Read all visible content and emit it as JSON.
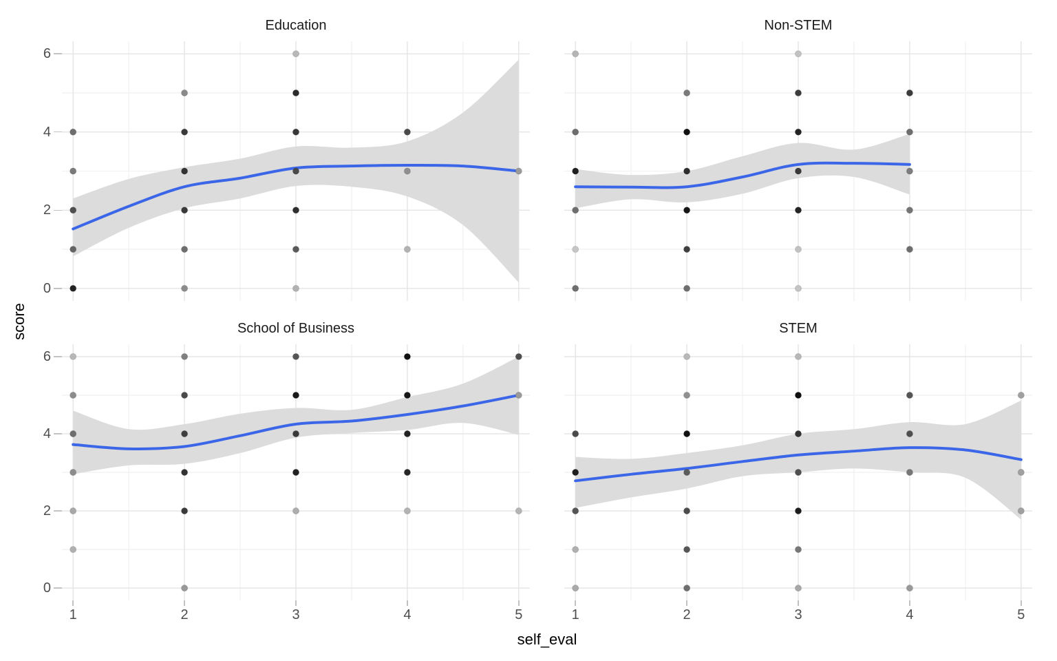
{
  "labels": {
    "x_axis": "self_eval",
    "y_axis": "score"
  },
  "axes": {
    "x_ticks": [
      "1",
      "2",
      "3",
      "4",
      "5"
    ],
    "y_ticks": [
      "0",
      "2",
      "4",
      "6"
    ],
    "x_domain": [
      0.9,
      5.1
    ],
    "y_domain": [
      -0.32,
      6.32
    ],
    "x_major": [
      1,
      2,
      3,
      4,
      5
    ],
    "x_minor": [
      1.5,
      2.5,
      3.5,
      4.5
    ],
    "y_major": [
      0,
      2,
      4,
      6
    ],
    "y_minor": [
      1,
      3,
      5
    ]
  },
  "style": {
    "background": "#FFFFFF",
    "smooth_color": "#3B66E8",
    "ribbon_color": "#DCDCDC",
    "grid_major": "#E4E4E4",
    "grid_minor": "#F1F1F1",
    "tick_color": "#C2C2C2",
    "tick_label_color": "#4D4D4D",
    "strip_color": "#1A1A1A",
    "axis_title_color": "#000000"
  },
  "chart_data": [
    {
      "type": "scatter",
      "facet": "Education",
      "xlabel": "self_eval",
      "ylabel": "score",
      "points": [
        {
          "x": 1,
          "y": 4,
          "c": "#6E6E6E"
        },
        {
          "x": 1,
          "y": 3,
          "c": "#7A7A7A"
        },
        {
          "x": 1,
          "y": 2,
          "c": "#4F4F4F"
        },
        {
          "x": 1,
          "y": 1,
          "c": "#646464"
        },
        {
          "x": 1,
          "y": 0,
          "c": "#222222"
        },
        {
          "x": 2,
          "y": 5,
          "c": "#8A8A8A"
        },
        {
          "x": 2,
          "y": 4,
          "c": "#3A3A3A"
        },
        {
          "x": 2,
          "y": 3,
          "c": "#333333"
        },
        {
          "x": 2,
          "y": 2,
          "c": "#3A3A3A"
        },
        {
          "x": 2,
          "y": 1,
          "c": "#6E6E6E"
        },
        {
          "x": 2,
          "y": 0,
          "c": "#8C8C8C"
        },
        {
          "x": 3,
          "y": 6,
          "c": "#B8B8B8"
        },
        {
          "x": 3,
          "y": 5,
          "c": "#2B2B2B"
        },
        {
          "x": 3,
          "y": 4,
          "c": "#383838"
        },
        {
          "x": 3,
          "y": 3,
          "c": "#4A4A4A"
        },
        {
          "x": 3,
          "y": 2,
          "c": "#2E2E2E"
        },
        {
          "x": 3,
          "y": 1,
          "c": "#5A5A5A"
        },
        {
          "x": 3,
          "y": 0,
          "c": "#B2B2B2"
        },
        {
          "x": 4,
          "y": 4,
          "c": "#4A4A4A"
        },
        {
          "x": 4,
          "y": 3,
          "c": "#8F8F8F"
        },
        {
          "x": 4,
          "y": 1,
          "c": "#B2B2B2"
        },
        {
          "x": 5,
          "y": 3,
          "c": "#9A9A9A"
        }
      ],
      "smooth": {
        "x": [
          1,
          1.5,
          2,
          2.5,
          3,
          3.5,
          4,
          4.5,
          5
        ],
        "y": [
          1.52,
          2.1,
          2.6,
          2.82,
          3.08,
          3.13,
          3.15,
          3.13,
          3.0
        ]
      },
      "ribbon": {
        "x": [
          1,
          1.5,
          2,
          2.5,
          3,
          3.5,
          4,
          4.5,
          5
        ],
        "ymin": [
          0.82,
          1.55,
          2.05,
          2.3,
          2.62,
          2.6,
          2.35,
          1.62,
          0.15
        ],
        "ymax": [
          2.3,
          2.8,
          3.1,
          3.32,
          3.63,
          3.6,
          3.76,
          4.5,
          5.85
        ]
      }
    },
    {
      "type": "scatter",
      "facet": "Non-STEM",
      "xlabel": "self_eval",
      "ylabel": "score",
      "points": [
        {
          "x": 1,
          "y": 6,
          "c": "#B5B5B5"
        },
        {
          "x": 1,
          "y": 4,
          "c": "#6E6E6E"
        },
        {
          "x": 1,
          "y": 3,
          "c": "#1F1F1F"
        },
        {
          "x": 1,
          "y": 2,
          "c": "#6E6E6E"
        },
        {
          "x": 1,
          "y": 1,
          "c": "#C6C6C6"
        },
        {
          "x": 1,
          "y": 0,
          "c": "#6E6E6E"
        },
        {
          "x": 2,
          "y": 5,
          "c": "#7A7A7A"
        },
        {
          "x": 2,
          "y": 4,
          "c": "#111111"
        },
        {
          "x": 2,
          "y": 3,
          "c": "#2E2E2E"
        },
        {
          "x": 2,
          "y": 2,
          "c": "#161616"
        },
        {
          "x": 2,
          "y": 1,
          "c": "#3F3F3F"
        },
        {
          "x": 2,
          "y": 0,
          "c": "#6E6E6E"
        },
        {
          "x": 3,
          "y": 6,
          "c": "#C2C2C2"
        },
        {
          "x": 3,
          "y": 5,
          "c": "#3C3C3C"
        },
        {
          "x": 3,
          "y": 4,
          "c": "#232323"
        },
        {
          "x": 3,
          "y": 3,
          "c": "#3A3A3A"
        },
        {
          "x": 3,
          "y": 2,
          "c": "#242424"
        },
        {
          "x": 3,
          "y": 1,
          "c": "#C2C2C2"
        },
        {
          "x": 3,
          "y": 0,
          "c": "#C4C4C4"
        },
        {
          "x": 4,
          "y": 5,
          "c": "#3C3C3C"
        },
        {
          "x": 4,
          "y": 4,
          "c": "#6E6E6E"
        },
        {
          "x": 4,
          "y": 3,
          "c": "#7D7D7D"
        },
        {
          "x": 4,
          "y": 2,
          "c": "#757575"
        },
        {
          "x": 4,
          "y": 1,
          "c": "#6E6E6E"
        }
      ],
      "smooth": {
        "x": [
          1,
          1.5,
          2,
          2.5,
          3,
          3.5,
          4
        ],
        "y": [
          2.6,
          2.59,
          2.6,
          2.85,
          3.17,
          3.2,
          3.17
        ]
      },
      "ribbon": {
        "x": [
          1,
          1.5,
          2,
          2.5,
          3,
          3.5,
          4
        ],
        "ymin": [
          2.05,
          2.28,
          2.2,
          2.42,
          2.82,
          2.85,
          2.4
        ],
        "ymax": [
          3.05,
          2.9,
          3.0,
          3.38,
          3.72,
          3.55,
          3.95
        ]
      }
    },
    {
      "type": "scatter",
      "facet": "School of Business",
      "xlabel": "self_eval",
      "ylabel": "score",
      "points": [
        {
          "x": 1,
          "y": 6,
          "c": "#B8B8B8"
        },
        {
          "x": 1,
          "y": 5,
          "c": "#8C8C8C"
        },
        {
          "x": 1,
          "y": 4,
          "c": "#6E6E6E"
        },
        {
          "x": 1,
          "y": 3,
          "c": "#8C8C8C"
        },
        {
          "x": 1,
          "y": 2,
          "c": "#A8A8A8"
        },
        {
          "x": 1,
          "y": 1,
          "c": "#B0B0B0"
        },
        {
          "x": 2,
          "y": 6,
          "c": "#808080"
        },
        {
          "x": 2,
          "y": 5,
          "c": "#4A4A4A"
        },
        {
          "x": 2,
          "y": 4,
          "c": "#3E3E3E"
        },
        {
          "x": 2,
          "y": 3,
          "c": "#333333"
        },
        {
          "x": 2,
          "y": 2,
          "c": "#3A3A3A"
        },
        {
          "x": 2,
          "y": 0,
          "c": "#999999"
        },
        {
          "x": 3,
          "y": 6,
          "c": "#555555"
        },
        {
          "x": 3,
          "y": 5,
          "c": "#1A1A1A"
        },
        {
          "x": 3,
          "y": 4,
          "c": "#3A3A3A"
        },
        {
          "x": 3,
          "y": 3,
          "c": "#222222"
        },
        {
          "x": 3,
          "y": 2,
          "c": "#ADADAD"
        },
        {
          "x": 4,
          "y": 6,
          "c": "#111111"
        },
        {
          "x": 4,
          "y": 5,
          "c": "#161616"
        },
        {
          "x": 4,
          "y": 4,
          "c": "#222222"
        },
        {
          "x": 4,
          "y": 3,
          "c": "#262626"
        },
        {
          "x": 4,
          "y": 2,
          "c": "#B3B3B3"
        },
        {
          "x": 5,
          "y": 6,
          "c": "#4D4D4D"
        },
        {
          "x": 5,
          "y": 5,
          "c": "#999999"
        },
        {
          "x": 5,
          "y": 2,
          "c": "#B5B5B5"
        }
      ],
      "smooth": {
        "x": [
          1,
          1.5,
          2,
          2.5,
          3,
          3.5,
          4,
          4.5,
          5
        ],
        "y": [
          3.72,
          3.61,
          3.67,
          3.95,
          4.25,
          4.33,
          4.5,
          4.72,
          5.0
        ]
      },
      "ribbon": {
        "x": [
          1,
          1.5,
          2,
          2.5,
          3,
          3.5,
          4,
          4.5,
          5
        ],
        "ymin": [
          2.95,
          3.18,
          3.22,
          3.5,
          3.9,
          4.02,
          4.1,
          4.28,
          3.97
        ],
        "ymax": [
          4.6,
          4.12,
          4.25,
          4.52,
          4.67,
          4.62,
          4.95,
          5.3,
          6.0
        ]
      }
    },
    {
      "type": "scatter",
      "facet": "STEM",
      "xlabel": "self_eval",
      "ylabel": "score",
      "points": [
        {
          "x": 1,
          "y": 4,
          "c": "#4A4A4A"
        },
        {
          "x": 1,
          "y": 3,
          "c": "#1E1E1E"
        },
        {
          "x": 1,
          "y": 2,
          "c": "#555555"
        },
        {
          "x": 1,
          "y": 1,
          "c": "#B0B0B0"
        },
        {
          "x": 1,
          "y": 0,
          "c": "#AAAAAA"
        },
        {
          "x": 2,
          "y": 6,
          "c": "#B8B8B8"
        },
        {
          "x": 2,
          "y": 5,
          "c": "#909090"
        },
        {
          "x": 2,
          "y": 4,
          "c": "#111111"
        },
        {
          "x": 2,
          "y": 3,
          "c": "#5C5C5C"
        },
        {
          "x": 2,
          "y": 2,
          "c": "#4C4C4C"
        },
        {
          "x": 2,
          "y": 1,
          "c": "#565656"
        },
        {
          "x": 2,
          "y": 0,
          "c": "#6E6E6E"
        },
        {
          "x": 3,
          "y": 6,
          "c": "#B8B8B8"
        },
        {
          "x": 3,
          "y": 5,
          "c": "#0F0F0F"
        },
        {
          "x": 3,
          "y": 4,
          "c": "#333333"
        },
        {
          "x": 3,
          "y": 3,
          "c": "#4F4F4F"
        },
        {
          "x": 3,
          "y": 2,
          "c": "#1C1C1C"
        },
        {
          "x": 3,
          "y": 1,
          "c": "#777777"
        },
        {
          "x": 3,
          "y": 0,
          "c": "#A8A8A8"
        },
        {
          "x": 4,
          "y": 5,
          "c": "#555555"
        },
        {
          "x": 4,
          "y": 4,
          "c": "#4F4F4F"
        },
        {
          "x": 4,
          "y": 3,
          "c": "#777777"
        },
        {
          "x": 4,
          "y": 0,
          "c": "#999999"
        },
        {
          "x": 5,
          "y": 5,
          "c": "#A0A0A0"
        },
        {
          "x": 5,
          "y": 3,
          "c": "#A0A0A0"
        },
        {
          "x": 5,
          "y": 2,
          "c": "#A0A0A0"
        }
      ],
      "smooth": {
        "x": [
          1,
          1.5,
          2,
          2.5,
          3,
          3.5,
          4,
          4.5,
          5
        ],
        "y": [
          2.78,
          2.95,
          3.1,
          3.28,
          3.45,
          3.55,
          3.64,
          3.58,
          3.33
        ]
      },
      "ribbon": {
        "x": [
          1,
          1.5,
          2,
          2.5,
          3,
          3.5,
          4,
          4.5,
          5
        ],
        "ymin": [
          2.08,
          2.35,
          2.58,
          2.9,
          3.0,
          3.1,
          3.0,
          2.86,
          1.78
        ],
        "ymax": [
          3.4,
          3.35,
          3.5,
          3.7,
          4.0,
          4.12,
          4.3,
          4.25,
          4.86
        ]
      }
    }
  ]
}
